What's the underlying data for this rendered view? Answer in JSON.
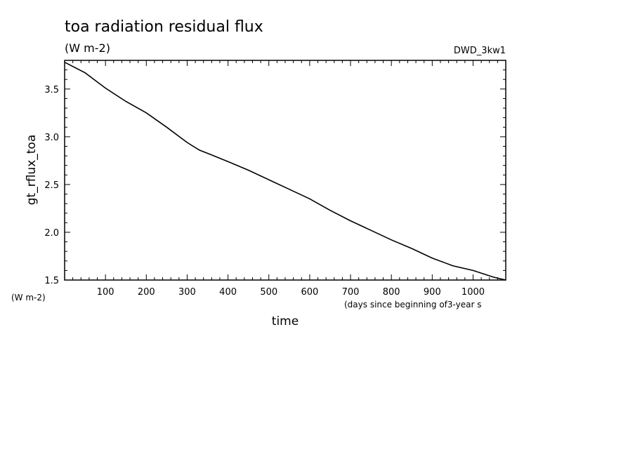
{
  "chart_data": {
    "type": "line",
    "title": "toa radiation residual flux",
    "subtitle": "(W m-2)",
    "experiment": "DWD_3kw1",
    "xlabel": "time",
    "xunit": "(days since beginning of3-year s",
    "ylabel": "gt_rflux_toa",
    "yunit": "(W m-2)",
    "xlim": [
      0,
      1080
    ],
    "ylim": [
      1.5,
      3.8
    ],
    "xticks": [
      100,
      200,
      300,
      400,
      500,
      600,
      700,
      800,
      900,
      1000
    ],
    "yticks": [
      1.5,
      2.0,
      2.5,
      3.0,
      3.5
    ],
    "ytick_labels": [
      "1.5",
      "2.0",
      "2.5",
      "3.0",
      "3.5"
    ],
    "grid": false,
    "series": [
      {
        "x": [
          0,
          50,
          100,
          150,
          200,
          250,
          300,
          330,
          360,
          400,
          450,
          500,
          550,
          600,
          650,
          700,
          750,
          800,
          850,
          900,
          950,
          1000,
          1050,
          1080
        ],
        "y": [
          3.78,
          3.67,
          3.51,
          3.37,
          3.25,
          3.1,
          2.94,
          2.86,
          2.81,
          2.74,
          2.65,
          2.55,
          2.45,
          2.35,
          2.23,
          2.12,
          2.02,
          1.92,
          1.83,
          1.73,
          1.65,
          1.6,
          1.53,
          1.5
        ]
      }
    ]
  }
}
